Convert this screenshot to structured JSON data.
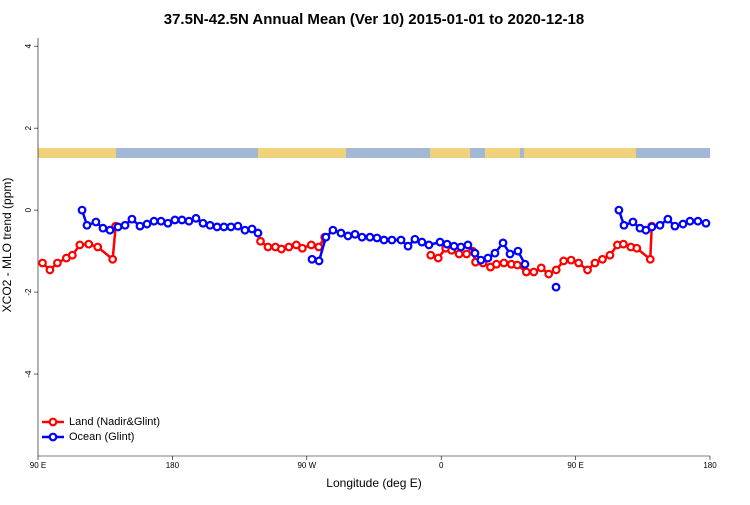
{
  "chart_data": {
    "type": "line",
    "title": "37.5N-42.5N Annual Mean (Ver 10)   2015-01-01 to 2020-12-18",
    "x_label": "Longitude (deg E)",
    "y_label": "XCO2 - MLO trend (ppm)",
    "xlim": [
      90,
      540
    ],
    "xticks": [
      {
        "value": 90,
        "label": "90 E"
      },
      180,
      {
        "value": 270,
        "label": "90 W"
      },
      {
        "value": 360,
        "label": "0"
      },
      {
        "value": 450,
        "label": "90 E"
      },
      {
        "value": 540,
        "label": "180"
      }
    ],
    "ylim": [
      -6,
      4.2
    ],
    "yticks": [
      -4,
      -2,
      0,
      2,
      4
    ],
    "legend": "bottom-left",
    "series": [
      {
        "name": "Land (Nadir&Glint)",
        "color": "#ff0000",
        "x": [
          93,
          98,
          103,
          109,
          113,
          118,
          124,
          130,
          140,
          142,
          null,
          239,
          244,
          249,
          253,
          258,
          263,
          267,
          273,
          278,
          282,
          null,
          353,
          358,
          363,
          367,
          372,
          377,
          381,
          383,
          388,
          393,
          397,
          402,
          407,
          411,
          417,
          422,
          427,
          432,
          437,
          442,
          447,
          452,
          458,
          463,
          468,
          473,
          478,
          482,
          487,
          491,
          500,
          501
        ],
        "values": [
          -1.29,
          -1.46,
          -1.29,
          -1.17,
          -1.1,
          -0.85,
          -0.83,
          -0.9,
          -1.2,
          -0.39,
          null,
          -0.76,
          -0.9,
          -0.9,
          -0.95,
          -0.9,
          -0.85,
          -0.93,
          -0.85,
          -0.9,
          -0.66,
          null,
          -1.1,
          -1.17,
          -0.93,
          -0.98,
          -1.07,
          -1.07,
          -1.0,
          -1.27,
          -1.29,
          -1.39,
          -1.32,
          -1.29,
          -1.32,
          -1.34,
          -1.51,
          -1.51,
          -1.41,
          -1.56,
          -1.46,
          -1.24,
          -1.22,
          -1.29,
          -1.46,
          -1.29,
          -1.2,
          -1.1,
          -0.85,
          -0.83,
          -0.9,
          -0.93,
          -1.2,
          -0.39
        ]
      },
      {
        "name": "Ocean (Glint)",
        "color": "#0000ff",
        "x": [
          119.5,
          122.8,
          128.8,
          133.5,
          138.2,
          143.6,
          148.3,
          152.9,
          158.3,
          163,
          167.7,
          172.4,
          177,
          181.7,
          186.4,
          191.1,
          195.8,
          200.5,
          205.2,
          209.9,
          214.5,
          219.2,
          223.9,
          228.6,
          233.3,
          237.3,
          null,
          273.5,
          278.2,
          282.8,
          287.5,
          292.9,
          297.6,
          302.3,
          307,
          312.3,
          317,
          321.7,
          327,
          333.1,
          337.8,
          342.4,
          347.1,
          351.8,
          359.2,
          363.9,
          368.6,
          373.2,
          377.9,
          382.6,
          386.6,
          391.3,
          396,
          401.4,
          406.1,
          411.4,
          416.1,
          null,
          436.9,
          null,
          479,
          482.4,
          488.4,
          493.1,
          497.1,
          501.1,
          506.5,
          511.8,
          516.5,
          521.9,
          526.6,
          531.9,
          537.3
        ],
        "values": [
          0.0,
          -0.37,
          -0.29,
          -0.44,
          -0.49,
          -0.41,
          -0.37,
          -0.22,
          -0.39,
          -0.34,
          -0.27,
          -0.27,
          -0.32,
          -0.24,
          -0.24,
          -0.27,
          -0.2,
          -0.32,
          -0.37,
          -0.41,
          -0.41,
          -0.41,
          -0.39,
          -0.49,
          -0.46,
          -0.56,
          null,
          -1.2,
          -1.24,
          -0.66,
          -0.49,
          -0.56,
          -0.63,
          -0.59,
          -0.66,
          -0.66,
          -0.68,
          -0.73,
          -0.73,
          -0.73,
          -0.88,
          -0.71,
          -0.78,
          -0.85,
          -0.78,
          -0.83,
          -0.88,
          -0.9,
          -0.85,
          -1.05,
          -1.22,
          -1.17,
          -1.05,
          -0.8,
          -1.07,
          -1.0,
          -1.32,
          null,
          -1.88,
          null,
          0.0,
          -0.37,
          -0.29,
          -0.44,
          -0.49,
          -0.41,
          -0.37,
          -0.22,
          -0.39,
          -0.34,
          -0.27,
          -0.27,
          -0.32
        ]
      }
    ]
  }
}
